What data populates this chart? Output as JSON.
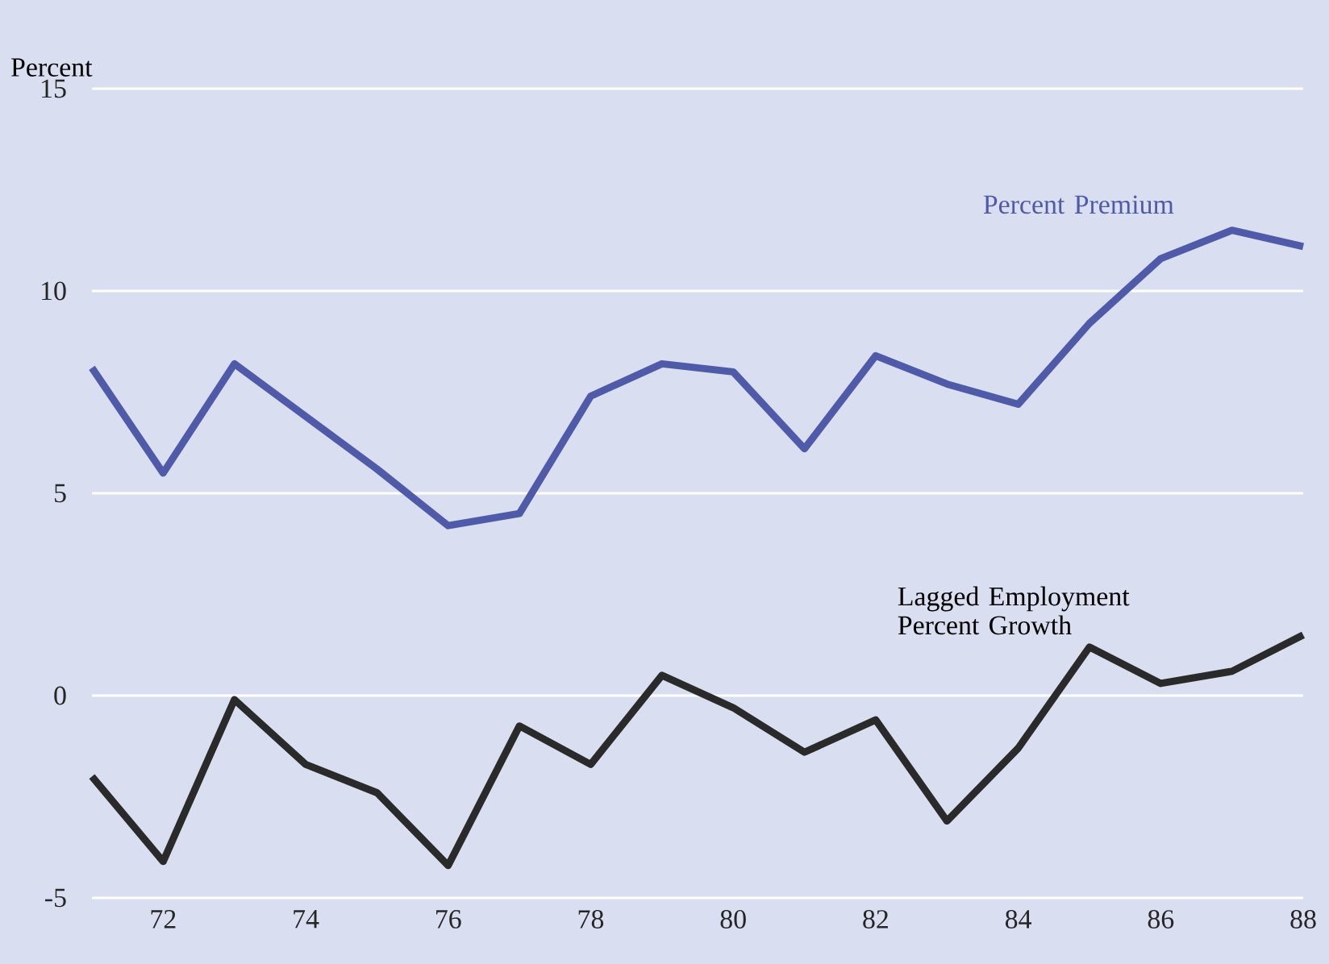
{
  "chart_data": {
    "type": "line",
    "ylabel": "Percent",
    "x": [
      71,
      72,
      73,
      74,
      75,
      76,
      77,
      78,
      79,
      80,
      81,
      82,
      83,
      84,
      85,
      86,
      87,
      88
    ],
    "xlim": [
      71,
      88
    ],
    "xticks": [
      72,
      74,
      76,
      78,
      80,
      82,
      84,
      86,
      88
    ],
    "ylim": [
      -5,
      15
    ],
    "yticks": [
      -5,
      0,
      5,
      10,
      15
    ],
    "grid": "y",
    "legend": false,
    "marker": "none",
    "line_style": "solid",
    "series": [
      {
        "name": "Percent Premium",
        "color": "#4f5aa8",
        "values": [
          8.1,
          5.5,
          8.2,
          6.9,
          5.6,
          4.2,
          4.5,
          7.4,
          8.2,
          8.0,
          6.1,
          8.4,
          7.7,
          7.2,
          9.2,
          10.8,
          11.5,
          11.1
        ]
      },
      {
        "name": "Lagged Employment Percent Growth",
        "color": "#2a2a2a",
        "values": [
          -2.0,
          -4.1,
          -0.1,
          -1.7,
          -2.4,
          -4.2,
          -0.75,
          -1.7,
          0.5,
          -0.3,
          -1.4,
          -0.6,
          -3.1,
          -1.3,
          1.2,
          0.3,
          0.6,
          1.5
        ]
      }
    ]
  }
}
